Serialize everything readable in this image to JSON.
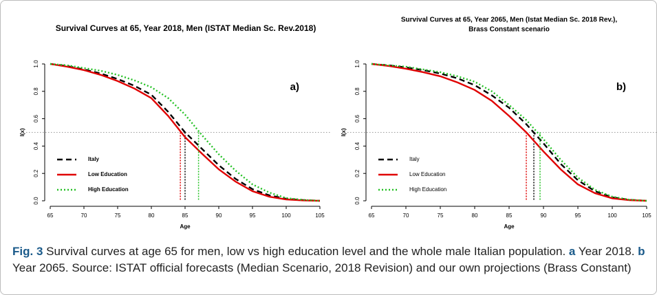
{
  "chart_data": [
    {
      "type": "line",
      "title": [
        "Survival Curves at 65, Year 2018, Men (ISTAT Median Sc. Rev.2018)"
      ],
      "annotation": "a)",
      "xlabel": "Age",
      "ylabel": "l(x)",
      "x": [
        65,
        67.5,
        70,
        72.5,
        75,
        77.5,
        80,
        82.5,
        85,
        87.5,
        90,
        92.5,
        95,
        97.5,
        100,
        102.5,
        105
      ],
      "xlim": [
        65,
        105
      ],
      "xticks": [
        65,
        70,
        75,
        80,
        85,
        90,
        95,
        100,
        105
      ],
      "ylim": [
        0,
        1
      ],
      "yticks": [
        {
          "value": 0,
          "label": "0.0"
        },
        0.2,
        0.4,
        0.6,
        0.8,
        {
          "value": 1,
          "label": "1.0"
        }
      ],
      "hline": 0.5,
      "legend": "lower left",
      "legend_bold": true,
      "series": [
        {
          "name": "Italy",
          "color": "#000000",
          "dash": "dashed",
          "median": 85,
          "values": [
            1,
            0.985,
            0.96,
            0.93,
            0.89,
            0.84,
            0.775,
            0.65,
            0.5,
            0.38,
            0.26,
            0.16,
            0.085,
            0.04,
            0.015,
            0.005,
            0
          ]
        },
        {
          "name": "Low Education",
          "color": "#e00000",
          "dash": "solid",
          "median": 84.3,
          "values": [
            1,
            0.98,
            0.955,
            0.92,
            0.875,
            0.82,
            0.75,
            0.62,
            0.465,
            0.345,
            0.23,
            0.14,
            0.07,
            0.03,
            0.01,
            0.003,
            0
          ]
        },
        {
          "name": "High Education",
          "color": "#22c022",
          "dash": "dotted",
          "median": 87,
          "values": [
            1,
            0.99,
            0.97,
            0.95,
            0.92,
            0.88,
            0.83,
            0.75,
            0.63,
            0.48,
            0.34,
            0.22,
            0.12,
            0.06,
            0.02,
            0.007,
            0
          ]
        }
      ]
    },
    {
      "type": "line",
      "title": [
        "Survival Curves at 65, Year 2065, Men (Istat Median Sc. 2018 Rev.),",
        "Brass Constant scenario"
      ],
      "annotation": "b)",
      "xlabel": "Age",
      "ylabel": "l(x)",
      "x": [
        65,
        67.5,
        70,
        72.5,
        75,
        77.5,
        80,
        82.5,
        85,
        87.5,
        90,
        92.5,
        95,
        97.5,
        100,
        102.5,
        105
      ],
      "xlim": [
        65,
        105
      ],
      "xticks": [
        65,
        70,
        75,
        80,
        85,
        90,
        95,
        100,
        105
      ],
      "ylim": [
        0,
        1
      ],
      "yticks": [
        {
          "value": 0,
          "label": "0.0"
        },
        0.2,
        0.4,
        0.6,
        0.8,
        {
          "value": 1,
          "label": "1.0"
        }
      ],
      "hline": 0.5,
      "legend": "lower left",
      "legend_bold": false,
      "series": [
        {
          "name": "Italy",
          "color": "#000000",
          "dash": "dashed",
          "median": 88.6,
          "values": [
            1,
            0.99,
            0.975,
            0.955,
            0.93,
            0.895,
            0.845,
            0.77,
            0.68,
            0.56,
            0.42,
            0.27,
            0.15,
            0.07,
            0.025,
            0.007,
            0
          ]
        },
        {
          "name": "Low Education",
          "color": "#e00000",
          "dash": "solid",
          "median": 87.5,
          "values": [
            1,
            0.985,
            0.965,
            0.94,
            0.91,
            0.865,
            0.81,
            0.73,
            0.62,
            0.5,
            0.36,
            0.23,
            0.12,
            0.055,
            0.018,
            0.005,
            0
          ]
        },
        {
          "name": "High Education",
          "color": "#22c022",
          "dash": "dotted",
          "median": 89.5,
          "values": [
            1,
            0.99,
            0.98,
            0.96,
            0.94,
            0.91,
            0.87,
            0.8,
            0.7,
            0.59,
            0.45,
            0.3,
            0.17,
            0.08,
            0.03,
            0.008,
            0
          ]
        }
      ]
    }
  ],
  "caption": [
    {
      "text": "Fig. 3",
      "bold": true
    },
    {
      "text": " Survival curves at age 65 for men, low vs high education level and the whole male Italian population. ",
      "bold": false
    },
    {
      "text": "a",
      "bold": true
    },
    {
      "text": " Year 2018. ",
      "bold": false
    },
    {
      "text": "b",
      "bold": true
    },
    {
      "text": " Year 2065. Source: ISTAT official forecasts (Median Scenario, 2018 Revision) and our own projections (Brass Constant)",
      "bold": false
    }
  ]
}
